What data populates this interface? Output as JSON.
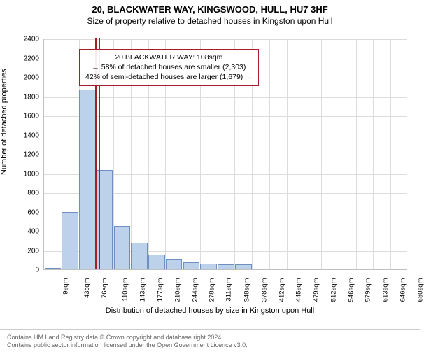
{
  "header": {
    "title1": "20, BLACKWATER WAY, KINGSWOOD, HULL, HU7 3HF",
    "title2": "Size of property relative to detached houses in Kingston upon Hull"
  },
  "chart": {
    "type": "histogram",
    "ylabel": "Number of detached properties",
    "xlabel": "Distribution of detached houses by size in Kingston upon Hull",
    "ylim": [
      0,
      2400
    ],
    "ytick_step": 200,
    "background_color": "#ffffff",
    "grid_color": "#dcdcdc",
    "axis_color": "#bfbfbf",
    "bar_color": "#bcd1ea",
    "bar_border_color": "#6e8fbf",
    "highlight_color": "#a71d2a",
    "categories": [
      "9sqm",
      "43sqm",
      "76sqm",
      "110sqm",
      "143sqm",
      "177sqm",
      "210sqm",
      "244sqm",
      "278sqm",
      "311sqm",
      "348sqm",
      "378sqm",
      "412sqm",
      "445sqm",
      "479sqm",
      "512sqm",
      "546sqm",
      "579sqm",
      "613sqm",
      "646sqm",
      "680sqm"
    ],
    "values": [
      15,
      600,
      1870,
      1030,
      450,
      280,
      150,
      110,
      70,
      60,
      50,
      50,
      0,
      0,
      0,
      0,
      0,
      0,
      0,
      0,
      0
    ],
    "highlight_index": 3,
    "bar_width_ratio": 0.95
  },
  "info_box": {
    "border_color": "#a71d2a",
    "line1": "20 BLACKWATER WAY: 108sqm",
    "line2": "← 58% of detached houses are smaller (2,303)",
    "line3": "42% of semi-detached houses are larger (1,679) →"
  },
  "footer": {
    "line1": "Contains HM Land Registry data © Crown copyright and database right 2024.",
    "line2": "Contains public sector information licensed under the Open Government Licence v3.0."
  }
}
